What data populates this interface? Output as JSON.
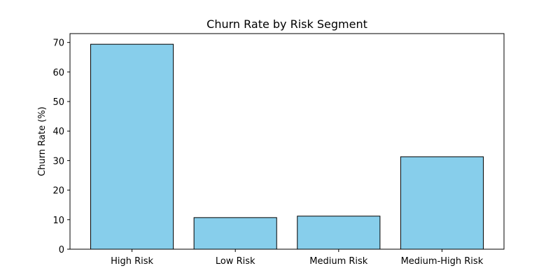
{
  "chart_data": {
    "type": "bar",
    "title": "Churn Rate by Risk Segment",
    "xlabel": "",
    "ylabel": "Churn Rate (%)",
    "categories": [
      "High Risk",
      "Low Risk",
      "Medium Risk",
      "Medium-High Risk"
    ],
    "values": [
      69.4,
      10.7,
      11.2,
      31.3
    ],
    "ylim": [
      0,
      73
    ],
    "yticks": [
      0,
      10,
      20,
      30,
      40,
      50,
      60,
      70
    ],
    "grid": false,
    "legend": "none",
    "colors": {
      "bar_fill": "#87ceeb",
      "bar_edge": "#000000",
      "axis": "#000000",
      "background": "#ffffff"
    }
  }
}
